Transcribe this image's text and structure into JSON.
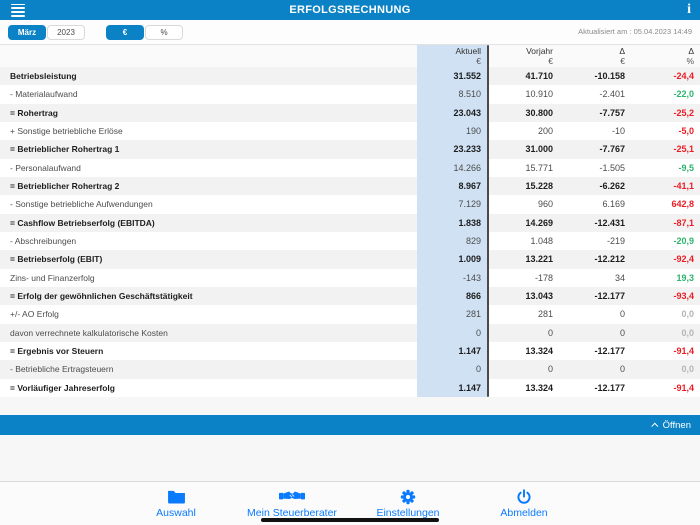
{
  "header": {
    "title": "ERFOLGSRECHNUNG"
  },
  "toolbar": {
    "period_segments": [
      {
        "label": "März",
        "active": true
      },
      {
        "label": "2023",
        "active": false
      }
    ],
    "unit_segments": [
      {
        "label": "€",
        "active": true
      },
      {
        "label": "%",
        "active": false
      }
    ],
    "updated_label": "Aktualisiert am : 05.04.2023 14:49"
  },
  "table": {
    "columns": [
      {
        "title": "Aktuell",
        "unit": "€",
        "highlighted": true
      },
      {
        "title": "Vorjahr",
        "unit": "€",
        "highlighted": false
      },
      {
        "title": "Δ",
        "unit": "€",
        "highlighted": false
      },
      {
        "title": "Δ",
        "unit": "%",
        "highlighted": false
      }
    ],
    "rows": [
      {
        "label": "Betriebsleistung",
        "aktuell": "31.552",
        "vorjahr": "41.710",
        "delta": "-10.158",
        "pct": "-24,4",
        "bold": true,
        "pct_status": "bad"
      },
      {
        "label": "- Materialaufwand",
        "aktuell": "8.510",
        "vorjahr": "10.910",
        "delta": "-2.401",
        "pct": "-22,0",
        "bold": false,
        "pct_status": "good"
      },
      {
        "label": "= Rohertrag",
        "aktuell": "23.043",
        "vorjahr": "30.800",
        "delta": "-7.757",
        "pct": "-25,2",
        "bold": true,
        "pct_status": "bad"
      },
      {
        "label": "+ Sonstige betriebliche Erlöse",
        "aktuell": "190",
        "vorjahr": "200",
        "delta": "-10",
        "pct": "-5,0",
        "bold": false,
        "pct_status": "bad"
      },
      {
        "label": "= Betrieblicher Rohertrag 1",
        "aktuell": "23.233",
        "vorjahr": "31.000",
        "delta": "-7.767",
        "pct": "-25,1",
        "bold": true,
        "pct_status": "bad"
      },
      {
        "label": "- Personalaufwand",
        "aktuell": "14.266",
        "vorjahr": "15.771",
        "delta": "-1.505",
        "pct": "-9,5",
        "bold": false,
        "pct_status": "good"
      },
      {
        "label": "= Betrieblicher Rohertrag 2",
        "aktuell": "8.967",
        "vorjahr": "15.228",
        "delta": "-6.262",
        "pct": "-41,1",
        "bold": true,
        "pct_status": "bad"
      },
      {
        "label": "- Sonstige betriebliche Aufwendungen",
        "aktuell": "7.129",
        "vorjahr": "960",
        "delta": "6.169",
        "pct": "642,8",
        "bold": false,
        "pct_status": "bad"
      },
      {
        "label": "= Cashflow Betriebserfolg (EBITDA)",
        "aktuell": "1.838",
        "vorjahr": "14.269",
        "delta": "-12.431",
        "pct": "-87,1",
        "bold": true,
        "pct_status": "bad"
      },
      {
        "label": "- Abschreibungen",
        "aktuell": "829",
        "vorjahr": "1.048",
        "delta": "-219",
        "pct": "-20,9",
        "bold": false,
        "pct_status": "good"
      },
      {
        "label": "= Betriebserfolg (EBIT)",
        "aktuell": "1.009",
        "vorjahr": "13.221",
        "delta": "-12.212",
        "pct": "-92,4",
        "bold": true,
        "pct_status": "bad"
      },
      {
        "label": "Zins- und Finanzerfolg",
        "aktuell": "-143",
        "vorjahr": "-178",
        "delta": "34",
        "pct": "19,3",
        "bold": false,
        "pct_status": "good"
      },
      {
        "label": "= Erfolg der gewöhnlichen Geschäftstätigkeit",
        "aktuell": "866",
        "vorjahr": "13.043",
        "delta": "-12.177",
        "pct": "-93,4",
        "bold": true,
        "pct_status": "bad"
      },
      {
        "label": "+/- AO Erfolg",
        "aktuell": "281",
        "vorjahr": "281",
        "delta": "0",
        "pct": "0,0",
        "bold": false,
        "pct_status": "neutral"
      },
      {
        "label": "davon verrechnete kalkulatorische Kosten",
        "aktuell": "0",
        "vorjahr": "0",
        "delta": "0",
        "pct": "0,0",
        "bold": false,
        "pct_status": "neutral"
      },
      {
        "label": "= Ergebnis vor Steuern",
        "aktuell": "1.147",
        "vorjahr": "13.324",
        "delta": "-12.177",
        "pct": "-91,4",
        "bold": true,
        "pct_status": "bad"
      },
      {
        "label": "- Betriebliche Ertragsteuern",
        "aktuell": "0",
        "vorjahr": "0",
        "delta": "0",
        "pct": "0,0",
        "bold": false,
        "pct_status": "neutral"
      },
      {
        "label": "= Vorläufiger Jahreserfolg",
        "aktuell": "1.147",
        "vorjahr": "13.324",
        "delta": "-12.177",
        "pct": "-91,4",
        "bold": true,
        "pct_status": "bad"
      }
    ]
  },
  "open_bar": {
    "label": "Öffnen"
  },
  "bottom_nav": {
    "items": [
      {
        "label": "Auswahl",
        "icon": "folder-icon"
      },
      {
        "label": "Mein Steuerberater",
        "icon": "handshake-icon"
      },
      {
        "label": "Einstellungen",
        "icon": "gear-icon"
      },
      {
        "label": "Abmelden",
        "icon": "power-icon"
      }
    ]
  },
  "colors": {
    "header_blue": "#0b82c6",
    "nav_blue": "#0a7aff",
    "aktuell_column_bg": "#cfe1f3",
    "stripe_bg": "#f2f2f2",
    "pct_bad": "#ec1c24",
    "pct_good": "#2db36d",
    "pct_neutral": "#b5b5b5"
  }
}
